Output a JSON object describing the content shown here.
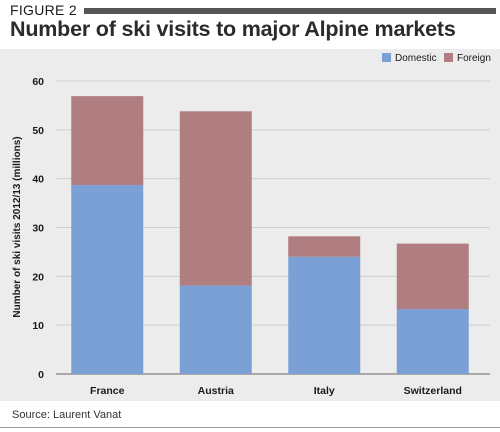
{
  "figure_label": "FIGURE 2",
  "title": "Number of ski visits to major Alpine markets",
  "source": "Source: Laurent Vanat",
  "colors": {
    "panel": "#ececec",
    "domestic": "#7ba0d5",
    "foreign": "#b07d81",
    "title_rule": "#555555"
  },
  "chart_data": {
    "type": "bar",
    "stacked": true,
    "categories": [
      "France",
      "Austria",
      "Italy",
      "Switzerland"
    ],
    "series": [
      {
        "name": "Domestic",
        "values": [
          38.7,
          18.1,
          24.0,
          13.3
        ]
      },
      {
        "name": "Foreign",
        "values": [
          18.2,
          35.7,
          4.2,
          13.4
        ]
      }
    ],
    "ylabel": "Number of ski visits 2012/13 (millions)",
    "xlabel": "",
    "ylim": [
      0,
      60
    ],
    "yticks": [
      0,
      10,
      20,
      30,
      40,
      50,
      60
    ],
    "grid": true,
    "legend": "top-right"
  }
}
